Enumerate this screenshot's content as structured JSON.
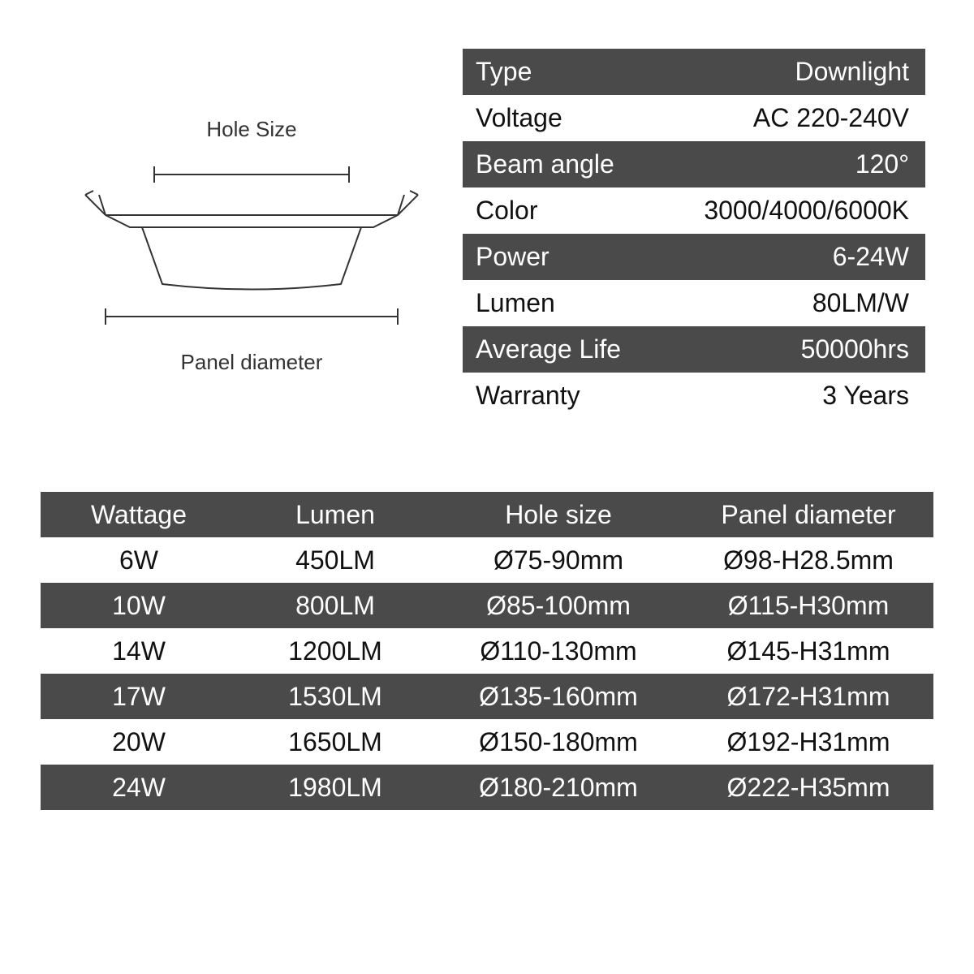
{
  "diagram": {
    "hole_label": "Hole Size",
    "panel_label": "Panel diameter"
  },
  "specs": {
    "rows": [
      {
        "label": "Type",
        "value": "Downlight",
        "dark": true
      },
      {
        "label": "Voltage",
        "value": "AC 220-240V",
        "dark": false
      },
      {
        "label": "Beam angle",
        "value": "120°",
        "dark": true
      },
      {
        "label": "Color",
        "value": "3000/4000/6000K",
        "dark": false
      },
      {
        "label": "Power",
        "value": "6-24W",
        "dark": true
      },
      {
        "label": "Lumen",
        "value": "80LM/W",
        "dark": false
      },
      {
        "label": "Average Life",
        "value": "50000hrs",
        "dark": true
      },
      {
        "label": "Warranty",
        "value": "3 Years",
        "dark": false
      }
    ]
  },
  "size_table": {
    "headers": [
      "Wattage",
      "Lumen",
      "Hole size",
      "Panel diameter"
    ],
    "rows": [
      {
        "cells": [
          "6W",
          "450LM",
          "Ø75-90mm",
          "Ø98-H28.5mm"
        ],
        "dark": false
      },
      {
        "cells": [
          "10W",
          "800LM",
          "Ø85-100mm",
          "Ø115-H30mm"
        ],
        "dark": true
      },
      {
        "cells": [
          "14W",
          "1200LM",
          "Ø110-130mm",
          "Ø145-H31mm"
        ],
        "dark": false
      },
      {
        "cells": [
          "17W",
          "1530LM",
          "Ø135-160mm",
          "Ø172-H31mm"
        ],
        "dark": true
      },
      {
        "cells": [
          "20W",
          "1650LM",
          "Ø150-180mm",
          "Ø192-H31mm"
        ],
        "dark": false
      },
      {
        "cells": [
          "24W",
          "1980LM",
          "Ø180-210mm",
          "Ø222-H35mm"
        ],
        "dark": true
      }
    ]
  },
  "colors": {
    "dark_bg": "#4a4a4a",
    "light_bg": "#ffffff",
    "text_light": "#ffffff",
    "text_dark": "#111111"
  }
}
